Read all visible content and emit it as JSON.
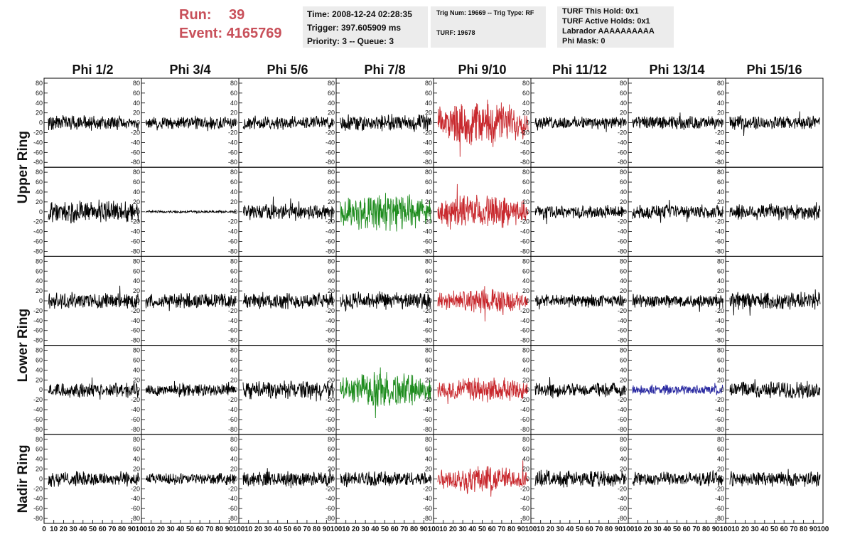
{
  "header": {
    "run_label": "Run:",
    "run_value": "39",
    "event_label": "Event:",
    "event_value": "4165769",
    "time": "Time: 2008-12-24 02:28:35",
    "trigger": "Trigger: 397.605909 ms",
    "priority": "Priority: 3 -- Queue: 3",
    "trig_num": "Trig Num: 19669 -- Trig Type: RF",
    "turf": "TURF: 19678",
    "turf_this_hold": "TURF This Hold: 0x1",
    "turf_active_holds": "TURF Active Holds: 0x1",
    "labrador": "Labrador AAAAAAAAAA",
    "phi_mask": "Phi Mask: 0"
  },
  "colors": {
    "normal": "#000000",
    "red": "#c8282d",
    "green": "#1e8c1e",
    "blue": "#2828a0"
  },
  "chart_data": {
    "type": "line",
    "title": "",
    "columns": [
      "Phi 1/2",
      "Phi 3/4",
      "Phi 5/6",
      "Phi 7/8",
      "Phi 9/10",
      "Phi 11/12",
      "Phi 13/14",
      "Phi 15/16"
    ],
    "rows": [
      {
        "name": "Upper Ring",
        "rows": 2
      },
      {
        "name": "Lower Ring",
        "rows": 2
      },
      {
        "name": "Nadir Ring",
        "rows": 1
      }
    ],
    "ylim": [
      -90,
      90
    ],
    "y_ticks": [
      80,
      60,
      40,
      20,
      0,
      -20,
      -40,
      -60,
      -80
    ],
    "xlim": [
      0,
      100
    ],
    "x_tick_labels": [
      "0",
      "10",
      "20",
      "30",
      "40",
      "50",
      "60",
      "70",
      "80",
      "90",
      "100"
    ],
    "row_amplitudes": [
      [
        12,
        11,
        11,
        13,
        30,
        10,
        11,
        11
      ],
      [
        18,
        2,
        13,
        26,
        22,
        10,
        11,
        14
      ],
      [
        13,
        12,
        13,
        14,
        16,
        10,
        11,
        14
      ],
      [
        12,
        10,
        14,
        24,
        17,
        11,
        8,
        14
      ],
      [
        12,
        9,
        12,
        12,
        18,
        13,
        11,
        12
      ]
    ],
    "row_colors": [
      [
        "normal",
        "normal",
        "normal",
        "normal",
        "red",
        "normal",
        "normal",
        "normal"
      ],
      [
        "normal",
        "normal",
        "normal",
        "green",
        "red",
        "normal",
        "normal",
        "normal"
      ],
      [
        "normal",
        "normal",
        "normal",
        "normal",
        "red",
        "normal",
        "normal",
        "normal"
      ],
      [
        "normal",
        "normal",
        "normal",
        "green",
        "red",
        "normal",
        "blue",
        "normal"
      ],
      [
        "normal",
        "normal",
        "normal",
        "normal",
        "red",
        "normal",
        "normal",
        "normal"
      ]
    ]
  }
}
